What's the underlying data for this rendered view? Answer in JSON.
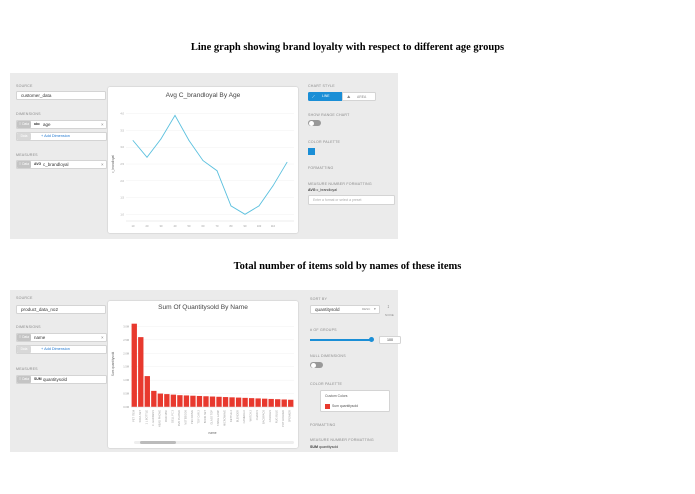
{
  "panel1": {
    "caption": "Line graph showing brand loyalty with respect to different age groups",
    "source_label": "SOURCE",
    "source_value": "customer_data",
    "dimensions_label": "DIMENSIONS",
    "dimension_tag": "⠿ Data",
    "dimension_prefix": "abc",
    "dimension_value": "age",
    "add_tag": "Data",
    "add_dimension": "+ Add Dimension",
    "measures_label": "MEASURES",
    "measure_tag": "⠿ Data",
    "measure_prefix": "AVG",
    "measure_value": "c_brandloyal",
    "chart_title": "Avg C_brandloyal By Age",
    "y_axis_label": "c_brandloyal",
    "x_axis_label": "age",
    "chart_style_label": "CHART STYLE",
    "style_line": "LINE",
    "style_area": "AREA",
    "show_range_label": "SHOW RANGE CHART",
    "color_palette_label": "COLOR PALETTE",
    "formatting_label": "FORMATTING",
    "measure_formatting_label": "MEASURE NUMBER FORMATTING",
    "measure_format_prefix": "AVG",
    "measure_format_value": "c_brandloyal",
    "format_placeholder": "Enter a format or select a preset",
    "accent_color": "#1a8ed6",
    "line_color": "#5bc0de"
  },
  "panel2": {
    "caption": "Total number of items sold by names of these items",
    "source_label": "SOURCE",
    "source_value": "product_data_no2",
    "dimensions_label": "DIMENSIONS",
    "dimension_tag": "⠿ Data",
    "dimension_prefix": "abc",
    "dimension_value": "name",
    "add_tag": "Data",
    "add_dimension": "+ Add Dimension",
    "measures_label": "MEASURES",
    "measure_tag": "⠿ Data",
    "measure_prefix": "SUM",
    "measure_value": "quantitysold",
    "chart_title": "Sum Of Quantitysold By Name",
    "y_axis_label": "Sum quantitysold",
    "x_axis_label": "name",
    "sort_by_label": "SORT BY",
    "sort_by_value": "quantitysold",
    "sort_order": "DESC",
    "sort_icon_label": "NONE",
    "groups_label": "# OF GROUPS",
    "groups_value": "100",
    "groups_fraction": 1.0,
    "null_dimensions_label": "NULL DIMENSIONS",
    "color_palette_label": "COLOR PALETTE",
    "custom_colors_label": "Custom Colors",
    "legend_series": "Sum quantitysold",
    "formatting_label": "FORMATTING",
    "measure_formatting_label": "MEASURE NUMBER FORMATTING",
    "measure_format_prefix": "SUM",
    "measure_format_value": "quantitysold",
    "accent_color": "#1a8ed6",
    "bar_color": "#e8392e"
  },
  "chart_data": [
    {
      "type": "line",
      "title": "Avg C_brandloyal By Age",
      "xlabel": "age",
      "ylabel": "c_brandloyal",
      "x": [
        10,
        20,
        30,
        40,
        50,
        60,
        70,
        80,
        90,
        100,
        110,
        120
      ],
      "values": [
        3.2,
        2.7,
        3.25,
        3.95,
        3.2,
        2.6,
        2.3,
        1.25,
        1.0,
        1.25,
        1.85,
        2.55
      ],
      "xticks": [
        "10",
        "20",
        "30",
        "40",
        "50",
        "60",
        "70",
        "80",
        "90",
        "100",
        "110"
      ],
      "yticks": [
        "1.0",
        "1.5",
        "2.0",
        "2.5",
        "3.0",
        "3.5",
        "4.0"
      ],
      "ylim": [
        0.8,
        4.2
      ],
      "grid": true,
      "color": "#5bc0de"
    },
    {
      "type": "bar",
      "title": "Sum Of Quantitysold By Name",
      "xlabel": "name",
      "ylabel": "Sum quantitysold",
      "categories": [
        "PET ITEM",
        "SOFA SET",
        "1 L BOTTLE",
        "C. GARDENS",
        "HEAD PHONE",
        "IPAD MINI",
        "DELL PC 3",
        "DVD PLAYER",
        "NOTEBOOK",
        "PEN DRIVE",
        "TOY CAR 2",
        "BOOK SET",
        "GLASS TOP",
        "TABLE LAMP",
        "MICROWAVE",
        "KETTLE 2",
        "BLENDER",
        "CAMERA X",
        "WATCH 2",
        "CHAIR 9",
        "BACKPACK",
        "CANDLES",
        "RUG BLUE",
        "POT HOLDER",
        "SPEAKER"
      ],
      "values": [
        3.1,
        2.6,
        1.15,
        0.6,
        0.5,
        0.48,
        0.46,
        0.44,
        0.43,
        0.42,
        0.41,
        0.4,
        0.39,
        0.38,
        0.37,
        0.36,
        0.35,
        0.34,
        0.33,
        0.32,
        0.31,
        0.3,
        0.29,
        0.28,
        0.27
      ],
      "yticks": [
        "0.0M",
        "0.5M",
        "1.0M",
        "1.5M",
        "2.0M",
        "2.5M",
        "3.0M"
      ],
      "ylim": [
        0,
        3.2
      ],
      "grid": true,
      "color": "#e8392e"
    }
  ]
}
